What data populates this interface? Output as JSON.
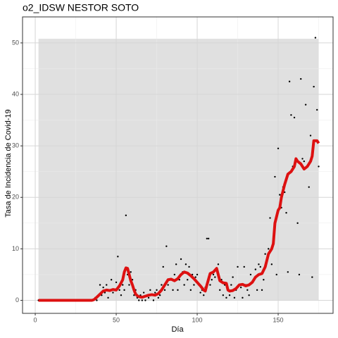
{
  "chart_data": {
    "type": "scatter-smooth",
    "title": "o2_IDSW NESTOR SOTO",
    "x_label": "Día",
    "y_label": "Tasa de Incidencia de Covid-19",
    "xlim": [
      -7.85,
      183.9
    ],
    "ylim": [
      -2.53,
      55.05
    ],
    "xticks": [
      0,
      50,
      100,
      150
    ],
    "yticks": [
      0,
      10,
      20,
      30,
      40,
      50
    ],
    "minor_xticks": [
      25,
      75,
      125,
      175
    ],
    "minor_yticks": [
      5,
      15,
      25,
      35,
      45
    ],
    "grid": true,
    "band": {
      "x": [
        2,
        175
      ],
      "y": [
        0,
        50.8
      ],
      "color": "#e0e0e0"
    },
    "points": {
      "color": "#000000",
      "x": [
        2,
        3,
        4,
        5,
        6,
        7,
        8,
        9,
        10,
        11,
        12,
        13,
        14,
        15,
        16,
        17,
        18,
        19,
        20,
        21,
        22,
        23,
        24,
        25,
        26,
        27,
        28,
        29,
        30,
        31,
        32,
        33,
        34,
        35,
        36,
        37,
        38,
        39,
        40,
        41,
        42,
        43,
        44,
        45,
        46,
        47,
        48,
        49,
        50,
        51,
        52,
        53,
        54,
        55,
        56,
        57,
        58,
        59,
        60,
        61,
        62,
        63,
        64,
        65,
        66,
        67,
        68,
        69,
        70,
        71,
        72,
        73,
        74,
        75,
        76,
        77,
        78,
        79,
        80,
        81,
        82,
        83,
        84,
        85,
        86,
        87,
        88,
        89,
        90,
        91,
        92,
        93,
        94,
        95,
        96,
        97,
        98,
        99,
        100,
        101,
        102,
        103,
        104,
        105,
        106,
        107,
        108,
        109,
        110,
        111,
        112,
        113,
        114,
        115,
        116,
        117,
        118,
        119,
        120,
        121,
        122,
        123,
        124,
        125,
        126,
        127,
        128,
        129,
        130,
        131,
        132,
        133,
        134,
        135,
        136,
        137,
        138,
        139,
        140,
        141,
        142,
        143,
        144,
        145,
        146,
        147,
        148,
        149,
        150,
        151,
        152,
        153,
        154,
        155,
        156,
        157,
        158,
        159,
        160,
        161,
        162,
        163,
        164,
        165,
        166,
        167,
        168,
        169,
        170,
        171,
        172,
        173,
        174,
        175
      ],
      "y": [
        0,
        0,
        0,
        0,
        0,
        0,
        0,
        0,
        0,
        0,
        0,
        0,
        0,
        0,
        0,
        0,
        0,
        0,
        0,
        0,
        0,
        0,
        0,
        0,
        0,
        0,
        0,
        0,
        0,
        0,
        0,
        0,
        0,
        0,
        0,
        0.5,
        0,
        1,
        3,
        1,
        2.5,
        1.5,
        3,
        0.5,
        2,
        4,
        1.5,
        2,
        3.5,
        8.5,
        2,
        1,
        3,
        2,
        16.5,
        5,
        3,
        5.5,
        4,
        1,
        2,
        0.5,
        0,
        1,
        0,
        1.5,
        0,
        1,
        0.5,
        2,
        1,
        0,
        1.5,
        2,
        0.5,
        1,
        3,
        6.5,
        2,
        10.5,
        3,
        4,
        4,
        2,
        5,
        7,
        2,
        4,
        8,
        5.5,
        3,
        7,
        4,
        6.5,
        2,
        5,
        3,
        4.5,
        5,
        3,
        1.5,
        2,
        1,
        2.5,
        12,
        12,
        3,
        4,
        5,
        4.5,
        6,
        7,
        2,
        4,
        1,
        3,
        0.5,
        2,
        1,
        3,
        4.5,
        0.5,
        2,
        6.5,
        3,
        2.5,
        0.5,
        6.5,
        3,
        2,
        1,
        5,
        3.5,
        4,
        6,
        2,
        7,
        6.5,
        2,
        4,
        9,
        7.5,
        10,
        16,
        7,
        12,
        24,
        5,
        29.5,
        20.5,
        18,
        22,
        21,
        17,
        5.5,
        42.5,
        36,
        26,
        35.5,
        27,
        15,
        5,
        43,
        27.5,
        27,
        38,
        26,
        22,
        32,
        4.5,
        41.5,
        51,
        37,
        26
      ]
    },
    "line": {
      "color": "#dd1111",
      "x": [
        2,
        35,
        36,
        37,
        38,
        40,
        42,
        44,
        46,
        48,
        50,
        52,
        54,
        55,
        56,
        57,
        58,
        59,
        60,
        61,
        62,
        63,
        64,
        66,
        68,
        70,
        72,
        74,
        76,
        78,
        80,
        82,
        84,
        86,
        88,
        90,
        92,
        94,
        96,
        98,
        100,
        102,
        104,
        105,
        106,
        108,
        110,
        112,
        113,
        114,
        116,
        118,
        119,
        120,
        122,
        124,
        126,
        128,
        130,
        132,
        134,
        136,
        138,
        140,
        142,
        144,
        146,
        147,
        148,
        150,
        151,
        152,
        154,
        156,
        158,
        160,
        161,
        162,
        164,
        166,
        168,
        170,
        171,
        172,
        174,
        175
      ],
      "y": [
        0,
        0,
        0.1,
        0.3,
        0.6,
        1.2,
        1.8,
        2,
        1.9,
        2.1,
        2,
        2.8,
        4,
        5.5,
        6.3,
        6.2,
        5,
        3.8,
        3,
        2,
        1.2,
        0.9,
        0.7,
        0.6,
        0.8,
        1,
        1.1,
        1,
        1.3,
        2,
        3,
        4,
        4.1,
        3.8,
        4.2,
        5,
        5.5,
        5.3,
        4.8,
        4.2,
        3.5,
        2.8,
        2,
        1.8,
        3,
        5.2,
        5.5,
        6.2,
        5,
        3.8,
        3.4,
        3.3,
        2,
        1.8,
        1.9,
        2.3,
        3,
        3.1,
        2.8,
        3,
        3.5,
        4.5,
        5,
        5.2,
        6.5,
        9,
        10,
        11,
        15,
        17.5,
        18,
        20,
        22.5,
        24.5,
        25,
        26,
        27.5,
        27,
        26.5,
        25.5,
        26,
        27,
        28,
        31,
        31,
        30.5
      ]
    }
  }
}
